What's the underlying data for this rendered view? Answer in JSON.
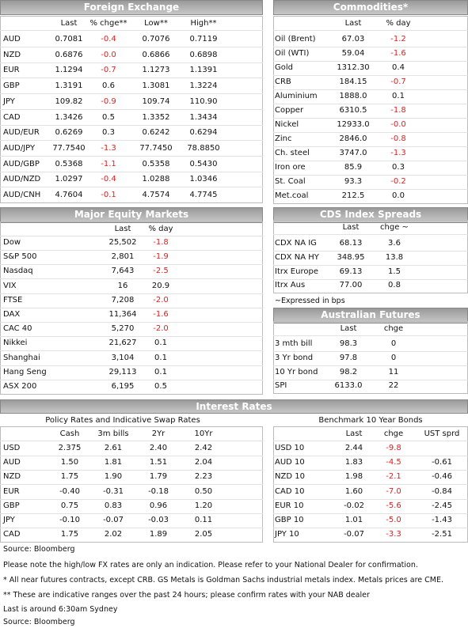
{
  "foreign_exchange": {
    "title": "Foreign Exchange",
    "columns": [
      "Last",
      "% chge**",
      "Low**",
      "High**"
    ],
    "rows": [
      [
        "AUD",
        "0.7081",
        "-0.4",
        "0.7076",
        "0.7119"
      ],
      [
        "NZD",
        "0.6876",
        "-0.0",
        "0.6866",
        "0.6898"
      ],
      [
        "EUR",
        "1.1294",
        "-0.7",
        "1.1273",
        "1.1391"
      ],
      [
        "GBP",
        "1.3191",
        "0.6",
        "1.3081",
        "1.3224"
      ],
      [
        "JPY",
        "109.82",
        "-0.9",
        "109.74",
        "110.90"
      ],
      [
        "CAD",
        "1.3426",
        "0.5",
        "1.3352",
        "1.3434"
      ],
      [
        "AUD/EUR",
        "0.6269",
        "0.3",
        "0.6242",
        "0.6294"
      ],
      [
        "AUD/JPY",
        "77.7540",
        "-1.3",
        "77.7450",
        "78.8850"
      ],
      [
        "AUD/GBP",
        "0.5368",
        "-1.1",
        "0.5358",
        "0.5430"
      ],
      [
        "AUD/NZD",
        "1.0297",
        "-0.4",
        "1.0288",
        "1.0346"
      ],
      [
        "AUD/CNH",
        "4.7604",
        "-0.1",
        "4.7574",
        "4.7745"
      ]
    ]
  },
  "commodities": {
    "title": "Commodities*",
    "columns": [
      "Last",
      "% day"
    ],
    "rows": [
      [
        "Oil (Brent)",
        "67.03",
        "-1.2"
      ],
      [
        "Oil (WTI)",
        "59.04",
        "-1.6"
      ],
      [
        "Gold",
        "1312.30",
        "0.4"
      ],
      [
        "CRB",
        "184.15",
        "-0.7"
      ],
      [
        "Aluminium",
        "1888.0",
        "0.1"
      ],
      [
        "Copper",
        "6310.5",
        "-1.8"
      ],
      [
        "Nickel",
        "12933.0",
        "-0.0"
      ],
      [
        "Zinc",
        "2846.0",
        "-0.8"
      ],
      [
        "Ch. steel",
        "3747.0",
        "-1.3"
      ],
      [
        "Iron ore",
        "85.9",
        "0.3"
      ],
      [
        "St. Coal",
        "93.3",
        "-0.2"
      ],
      [
        "Met.coal",
        "212.5",
        "0.0"
      ]
    ]
  },
  "equity_markets": {
    "title": "Major Equity Markets",
    "columns": [
      "Last",
      "% day"
    ],
    "rows": [
      [
        "Dow",
        "25,502",
        "-1.8"
      ],
      [
        "S&P 500",
        "2,801",
        "-1.9"
      ],
      [
        "Nasdaq",
        "7,643",
        "-2.5"
      ],
      [
        "VIX",
        "16",
        "20.9"
      ],
      [
        "FTSE",
        "7,208",
        "-2.0"
      ],
      [
        "DAX",
        "11,364",
        "-1.6"
      ],
      [
        "CAC 40",
        "5,270",
        "-2.0"
      ],
      [
        "Nikkei",
        "21,627",
        "0.1"
      ],
      [
        "Shanghai",
        "3,104",
        "0.1"
      ],
      [
        "Hang Seng",
        "29,113",
        "0.1"
      ],
      [
        "ASX 200",
        "6,195",
        "0.5"
      ]
    ]
  },
  "cds_spreads": {
    "title": "CDS Index Spreads",
    "columns": [
      "Last",
      "chge ~"
    ],
    "rows": [
      [
        "CDX NA IG",
        "68.13",
        "3.6"
      ],
      [
        "CDX NA HY",
        "348.95",
        "13.8"
      ],
      [
        "Itrx Europe",
        "69.13",
        "1.5"
      ],
      [
        "Itrx Aus",
        "77.00",
        "0.8"
      ]
    ],
    "note": "~Expressed in bps"
  },
  "australian_futures": {
    "title": "Australian Futures",
    "columns": [
      "Last",
      "chge"
    ],
    "rows": [
      [
        "3 mth bill",
        "98.3",
        "0"
      ],
      [
        "3 Yr bond",
        "97.8",
        "0"
      ],
      [
        "10 Yr bond",
        "98.2",
        "11"
      ],
      [
        "SPI",
        "6133.0",
        "22"
      ]
    ]
  },
  "interest_rates": {
    "title": "Interest Rates",
    "policy": {
      "title": "Policy Rates and Indicative Swap Rates",
      "columns": [
        "Cash",
        "3m bills",
        "2Yr",
        "10Yr"
      ],
      "rows": [
        [
          "USD",
          "2.375",
          "2.61",
          "2.40",
          "2.42"
        ],
        [
          "AUD",
          "1.50",
          "1.81",
          "1.51",
          "2.04"
        ],
        [
          "NZD",
          "1.75",
          "1.90",
          "1.79",
          "2.23"
        ],
        [
          "EUR",
          "-0.40",
          "-0.31",
          "-0.18",
          "0.50"
        ],
        [
          "GBP",
          "0.75",
          "0.83",
          "0.96",
          "1.20"
        ],
        [
          "JPY",
          "-0.10",
          "-0.07",
          "-0.03",
          "0.11"
        ],
        [
          "CAD",
          "1.75",
          "2.02",
          "1.89",
          "2.05"
        ]
      ]
    },
    "bonds": {
      "title": "Benchmark 10 Year Bonds",
      "columns": [
        "Last",
        "chge",
        "UST sprd"
      ],
      "rows": [
        [
          "USD 10",
          "2.44",
          "-9.8"
        ],
        [
          "AUD 10",
          "1.83",
          "-4.5",
          "-0.61"
        ],
        [
          "NZD 10",
          "1.98",
          "-2.1",
          "-0.46"
        ],
        [
          "CAD 10",
          "1.60",
          "-7.0",
          "-0.84"
        ],
        [
          "EUR 10",
          "-0.02",
          "-5.6",
          "-2.45"
        ],
        [
          "GBP 10",
          "1.01",
          "-5.0",
          "-1.43"
        ],
        [
          "JPY 10",
          "-0.07",
          "-3.3",
          "-2.51"
        ]
      ]
    }
  },
  "footnotes": [
    "Source: Bloomberg",
    "Please note the high/low FX rates are only an indication. Please refer to your National Dealer for confirmation.",
    "* All near futures contracts, except CRB. GS Metals is Goldman Sachs industrial metals index.  Metals prices are CME.",
    "** These are indicative ranges over the past 24 hours; please confirm rates with your NAB dealer",
    "Last is around 6:30am Sydney",
    "Source: Bloomberg"
  ]
}
